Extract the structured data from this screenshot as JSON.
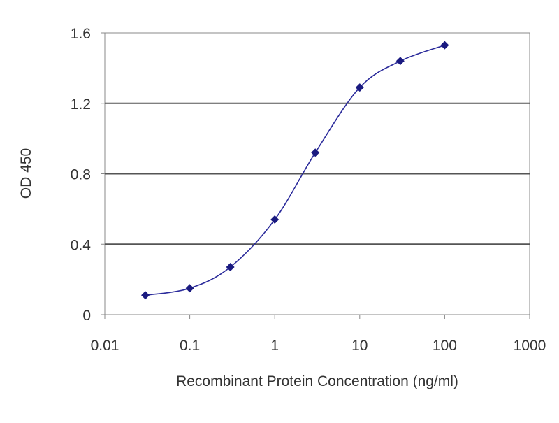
{
  "chart_data": {
    "type": "scatter",
    "title": "",
    "xlabel": "Recombinant Protein Concentration (ng/ml)",
    "ylabel": "OD 450",
    "x_scale": "log",
    "xlim": [
      0.01,
      1000
    ],
    "ylim": [
      0,
      1.6
    ],
    "x_ticks": [
      0.01,
      0.1,
      1,
      10,
      100,
      1000
    ],
    "x_tick_labels": [
      "0.01",
      "0.1",
      "1",
      "10",
      "100",
      "1000"
    ],
    "y_ticks": [
      0,
      0.4,
      0.8,
      1.2,
      1.6
    ],
    "y_tick_labels": [
      "0",
      "0.4",
      "0.8",
      "1.2",
      "1.6"
    ],
    "grid": "horizontal",
    "legend": "none",
    "fit_curve": "sigmoidal",
    "series": [
      {
        "x": [
          0.03,
          0.1,
          0.3,
          1,
          3,
          10,
          30,
          100
        ],
        "y": [
          0.11,
          0.15,
          0.27,
          0.54,
          0.92,
          1.29,
          1.44,
          1.53
        ]
      }
    ],
    "colors": {
      "marker": "#1a1a80",
      "curve": "#2b2b9b",
      "gridline": "#555555",
      "axis": "#888888"
    }
  }
}
